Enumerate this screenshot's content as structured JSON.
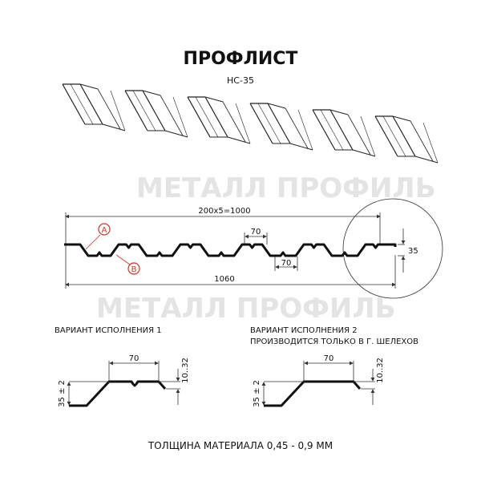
{
  "title": "ПРОФЛИСТ",
  "subtitle": "НС-35",
  "watermark": "МЕТАЛЛ ПРОФИЛЬ",
  "main_profile": {
    "dim_pitch": "200x5=1000",
    "dim_total": "1060",
    "dim_top": "70",
    "dim_bottom": "70",
    "dim_height": "35",
    "marker_a": "A",
    "marker_b": "B",
    "marker_color": "#c0392b"
  },
  "variant1": {
    "title": "ВАРИАНТ ИСПОЛНЕНИЯ 1",
    "dim_width": "70",
    "dim_height": "35 ± 2",
    "dim_edge": "10..32"
  },
  "variant2": {
    "title": "ВАРИАНТ ИСПОЛНЕНИЯ 2",
    "note": "ПРОИЗВОДИТСЯ ТОЛЬКО В Г. ШЕЛЕХОВ",
    "dim_width": "70",
    "dim_height": "35 ± 2",
    "dim_edge": "10..32"
  },
  "footer": "ТОЛЩИНА МАТЕРИАЛА 0,45 - 0,9 ММ"
}
